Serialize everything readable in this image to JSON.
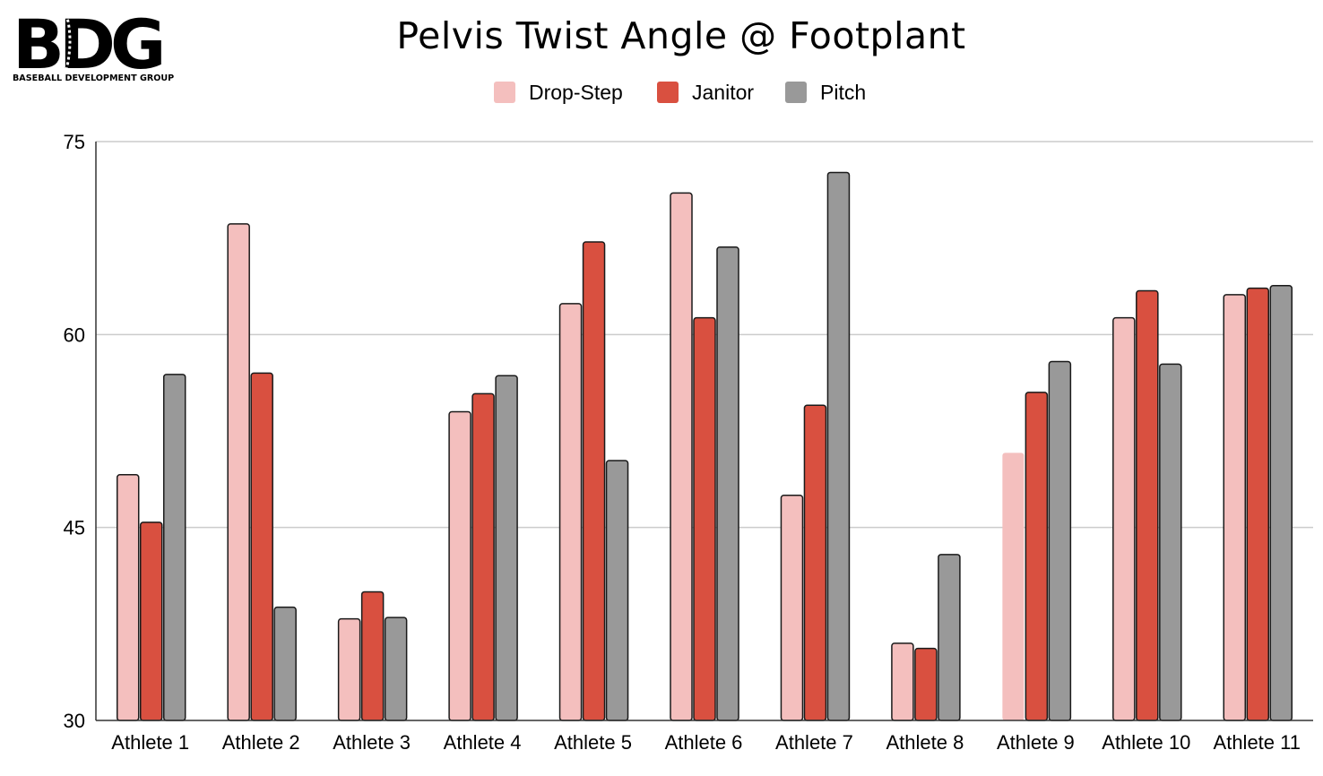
{
  "logo": {
    "text": "BDG",
    "subtitle": "BASEBALL DEVELOPMENT GROUP"
  },
  "colors": {
    "drop_step": "#f4bfbe",
    "janitor": "#d95040",
    "pitch": "#999999",
    "grid": "#cccccc",
    "axis": "#333333",
    "text": "#000000"
  },
  "chart_data": {
    "type": "bar",
    "title": "Pelvis Twist Angle @ Footplant",
    "xlabel": "",
    "ylabel": "",
    "ylim": [
      30,
      75
    ],
    "yticks": [
      30,
      45,
      60,
      75
    ],
    "grid": true,
    "legend_position": "top",
    "categories": [
      "Athlete 1",
      "Athlete 2",
      "Athlete 3",
      "Athlete 4",
      "Athlete 5",
      "Athlete 6",
      "Athlete 7",
      "Athlete 8",
      "Athlete 9",
      "Athlete 10",
      "Athlete 11"
    ],
    "series": [
      {
        "name": "Drop-Step",
        "color": "#f4bfbe",
        "values": [
          49.1,
          68.6,
          37.9,
          54.0,
          62.4,
          71.0,
          47.5,
          36.0,
          50.8,
          61.3,
          63.1
        ]
      },
      {
        "name": "Janitor",
        "color": "#d95040",
        "values": [
          45.4,
          57.0,
          40.0,
          55.4,
          67.2,
          61.3,
          54.5,
          35.6,
          55.5,
          63.4,
          63.6
        ]
      },
      {
        "name": "Pitch",
        "color": "#999999",
        "values": [
          56.9,
          38.8,
          38.0,
          56.8,
          50.2,
          66.8,
          72.6,
          42.9,
          57.9,
          57.7,
          63.8
        ]
      }
    ]
  }
}
